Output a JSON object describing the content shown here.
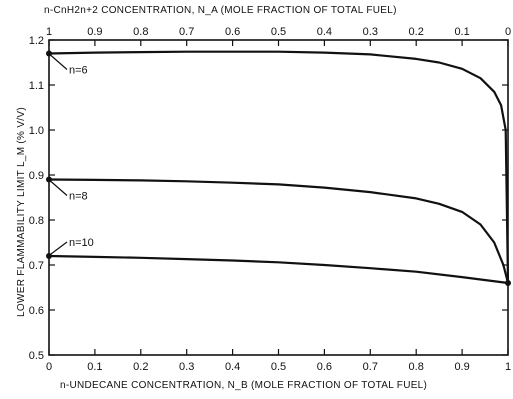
{
  "chart_data": {
    "type": "line",
    "xlabel": "n-UNDECANE CONCENTRATION, N_B (MOLE FRACTION OF TOTAL FUEL)",
    "top_xlabel": "n-CnH2n+2 CONCENTRATION, N_A (MOLE FRACTION OF TOTAL FUEL)",
    "ylabel": "LOWER FLAMMABILITY LIMIT L_M (% V/V)",
    "xlim": [
      0,
      1
    ],
    "ylim": [
      0.5,
      1.2
    ],
    "x_ticks": [
      "0",
      "0.1",
      "0.2",
      "0.3",
      "0.4",
      "0.5",
      "0.6",
      "0.7",
      "0.8",
      "0.9",
      "1"
    ],
    "top_ticks": [
      "1",
      "0.9",
      "0.8",
      "0.7",
      "0.6",
      "0.5",
      "0.4",
      "0.3",
      "0.2",
      "0.1",
      "0"
    ],
    "y_ticks": [
      "0.5",
      "0.6",
      "0.7",
      "0.8",
      "0.9",
      "1.0",
      "1.1",
      "1.2"
    ],
    "series": [
      {
        "name": "n=6",
        "x": [
          0,
          0.1,
          0.2,
          0.3,
          0.4,
          0.5,
          0.6,
          0.7,
          0.8,
          0.85,
          0.9,
          0.94,
          0.97,
          0.985,
          0.995,
          1.0
        ],
        "y": [
          1.17,
          1.172,
          1.173,
          1.174,
          1.174,
          1.174,
          1.172,
          1.168,
          1.158,
          1.15,
          1.136,
          1.115,
          1.085,
          1.055,
          1.0,
          0.66
        ]
      },
      {
        "name": "n=8",
        "x": [
          0,
          0.1,
          0.2,
          0.3,
          0.4,
          0.5,
          0.6,
          0.7,
          0.8,
          0.85,
          0.9,
          0.94,
          0.97,
          0.99,
          1.0
        ],
        "y": [
          0.89,
          0.889,
          0.888,
          0.886,
          0.883,
          0.879,
          0.872,
          0.862,
          0.848,
          0.836,
          0.818,
          0.79,
          0.75,
          0.7,
          0.66
        ]
      },
      {
        "name": "n=10",
        "x": [
          0,
          0.1,
          0.2,
          0.3,
          0.4,
          0.5,
          0.6,
          0.7,
          0.8,
          0.9,
          1.0
        ],
        "y": [
          0.72,
          0.718,
          0.716,
          0.713,
          0.71,
          0.706,
          0.7,
          0.693,
          0.685,
          0.673,
          0.66
        ]
      }
    ],
    "markers": [
      {
        "x": 0,
        "y": 1.17
      },
      {
        "x": 0,
        "y": 0.89
      },
      {
        "x": 0,
        "y": 0.72
      },
      {
        "x": 1,
        "y": 0.66
      }
    ]
  }
}
